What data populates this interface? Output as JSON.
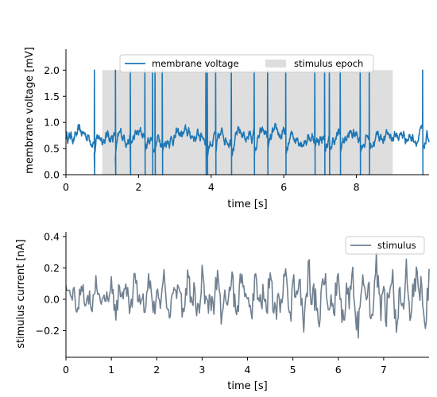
{
  "chart_data": [
    {
      "type": "line",
      "xlabel": "time [s]",
      "ylabel": "membrane voltage [mV]",
      "xlim": [
        0,
        10
      ],
      "ylim": [
        0,
        2.4
      ],
      "xticks": [
        "0",
        "2",
        "4",
        "6",
        "8"
      ],
      "yticks": [
        "0.0",
        "0.5",
        "1.0",
        "1.5",
        "2.0"
      ],
      "grid": false,
      "legend_position": "top-center",
      "series": [
        {
          "name": "membrane voltage",
          "color": "#1f77b4",
          "baseline_range": [
            0.5,
            1.0
          ],
          "spike_peak": 2.0,
          "spike_trough": 0.0,
          "spike_times": [
            0.78,
            1.36,
            1.77,
            2.17,
            2.38,
            2.45,
            2.65,
            3.85,
            3.89,
            4.12,
            4.55,
            5.18,
            5.55,
            6.05,
            6.85,
            7.12,
            7.25,
            7.55,
            8.1,
            8.35,
            9.82
          ]
        }
      ],
      "stimulus_epoch": {
        "name": "stimulus epoch",
        "start": 1.0,
        "end": 9.0,
        "color": "#dedede"
      }
    },
    {
      "type": "line",
      "xlabel": "time [s]",
      "ylabel": "stimulus current [nA]",
      "xlim": [
        0,
        8
      ],
      "ylim": [
        -0.37,
        0.43
      ],
      "xticks": [
        "0",
        "1",
        "2",
        "3",
        "4",
        "5",
        "6",
        "7"
      ],
      "yticks": [
        "−0.2",
        "0.0",
        "0.2",
        "0.4"
      ],
      "grid": false,
      "legend_position": "top-right",
      "series": [
        {
          "name": "stimulus",
          "color": "#708090",
          "value_range": [
            -0.3,
            0.35
          ]
        }
      ]
    }
  ]
}
